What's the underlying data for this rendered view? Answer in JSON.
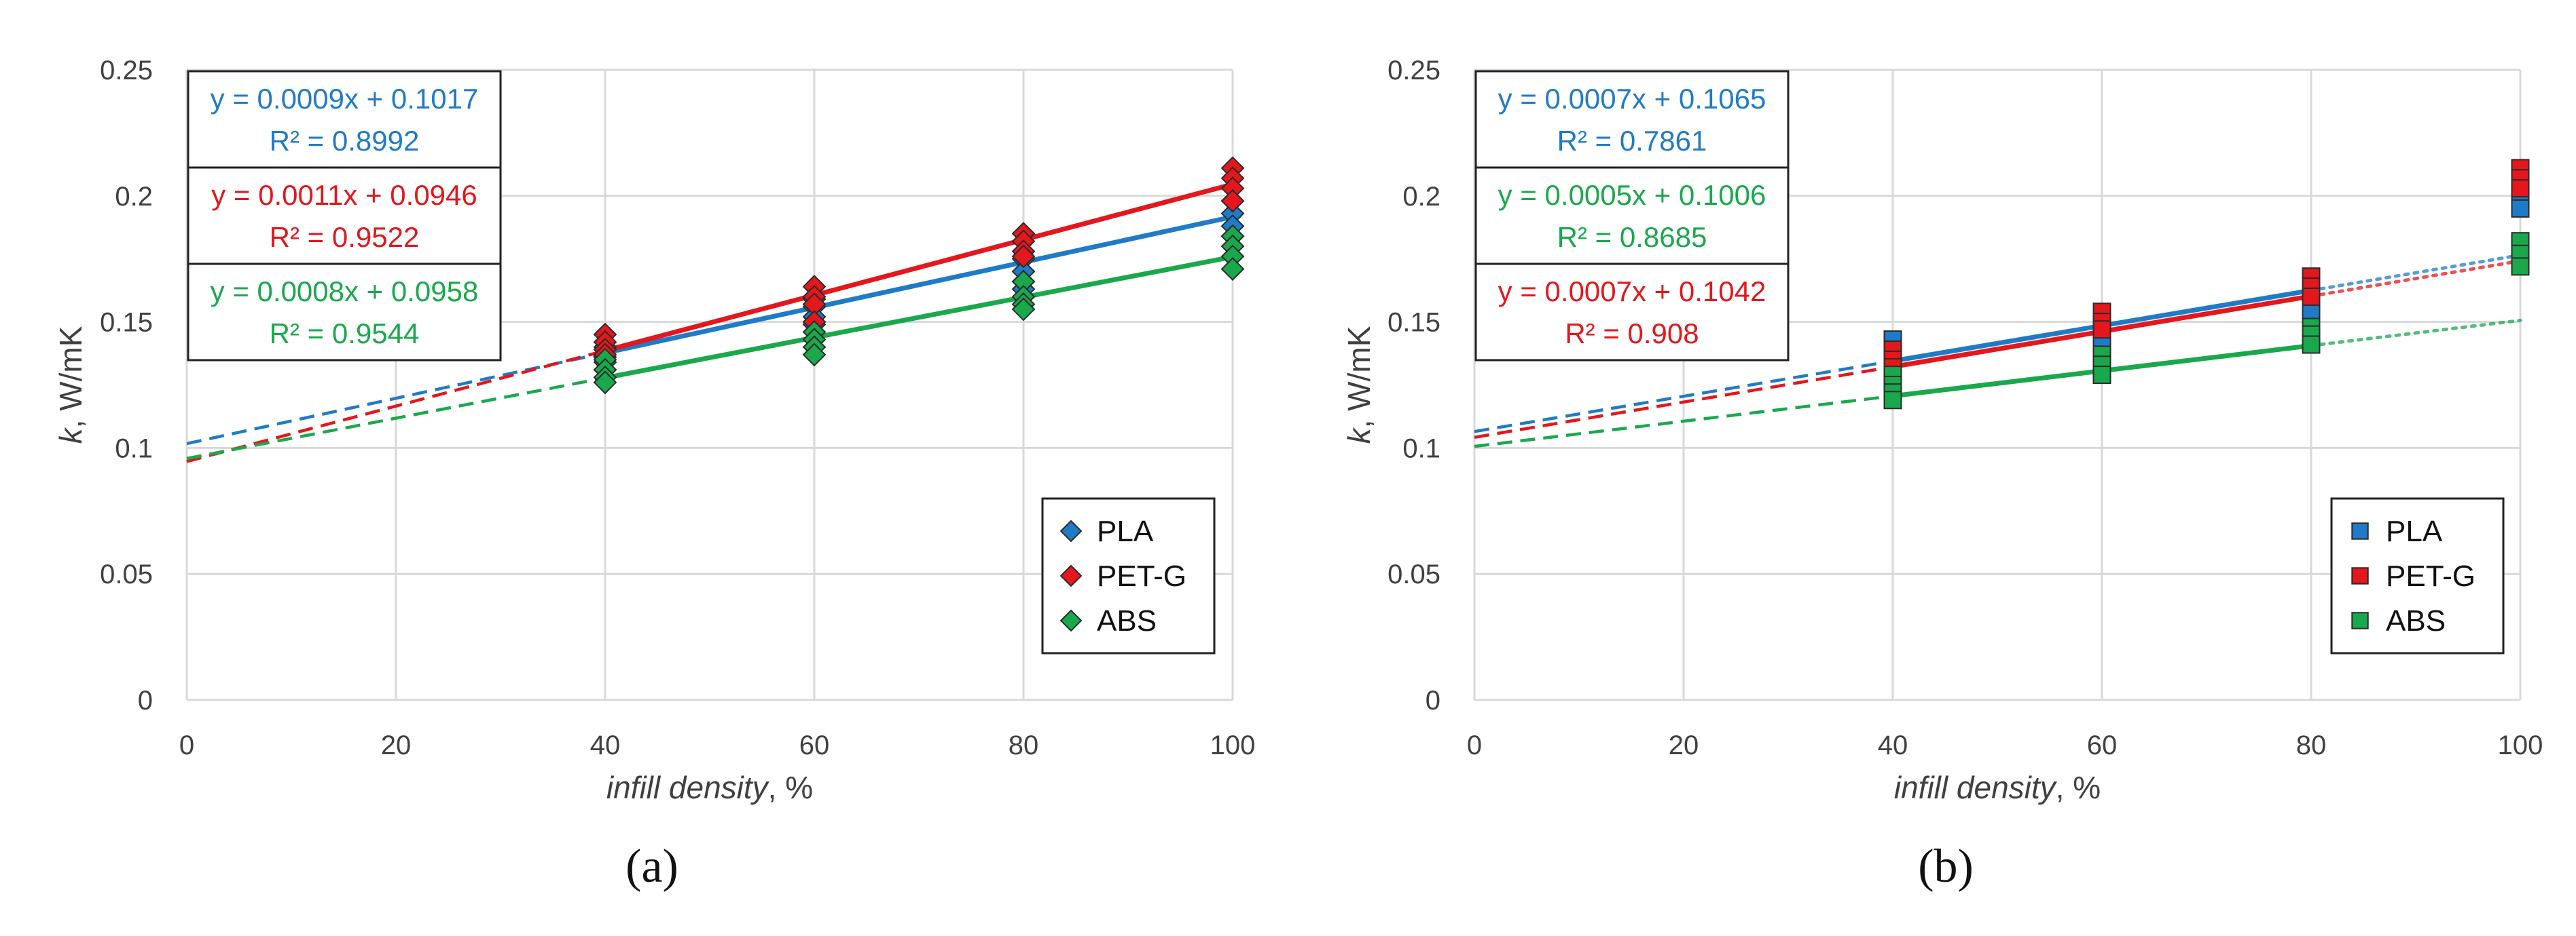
{
  "colors": {
    "PLA": "#1f7bc8",
    "PET-G": "#e3171c",
    "ABS": "#1aa84c",
    "grid": "#d9d9d9",
    "text": "#404040"
  },
  "chart_data": [
    {
      "id": "a",
      "type": "scatter",
      "panel_label": "(a)",
      "marker": "diamond",
      "xlabel_italic": "infill density",
      "xlabel_suffix": ", %",
      "ylabel_italic": "k",
      "ylabel_suffix": ", W/mK",
      "xlim": [
        0,
        100
      ],
      "ylim": [
        0,
        0.25
      ],
      "xticks": [
        0,
        20,
        40,
        60,
        80,
        100
      ],
      "yticks": [
        0,
        0.05,
        0.1,
        0.15,
        0.2,
        0.25
      ],
      "ytick_labels": [
        "0",
        "0.05",
        "0.1",
        "0.15",
        "0.2",
        "0.25"
      ],
      "grid": true,
      "legend_position": "bottom-right",
      "fit_x_range": [
        40,
        100
      ],
      "dashed_extrapolation": [
        0,
        40
      ],
      "series": [
        {
          "name": "PLA",
          "color_key": "PLA",
          "points": [
            [
              40,
              0.14
            ],
            [
              40,
              0.136
            ],
            [
              40,
              0.134
            ],
            [
              40,
              0.131
            ],
            [
              60,
              0.159
            ],
            [
              60,
              0.156
            ],
            [
              60,
              0.152
            ],
            [
              60,
              0.149
            ],
            [
              80,
              0.175
            ],
            [
              80,
              0.17
            ],
            [
              80,
              0.166
            ],
            [
              80,
              0.163
            ],
            [
              100,
              0.198
            ],
            [
              100,
              0.193
            ],
            [
              100,
              0.188
            ],
            [
              100,
              0.184
            ]
          ],
          "fit": {
            "slope": 0.0009,
            "intercept": 0.1017
          },
          "equation": "y = 0.0009x + 0.1017",
          "r2": "R² = 0.8992"
        },
        {
          "name": "PET-G",
          "color_key": "PET-G",
          "points": [
            [
              40,
              0.145
            ],
            [
              40,
              0.142
            ],
            [
              40,
              0.139
            ],
            [
              40,
              0.137
            ],
            [
              60,
              0.164
            ],
            [
              60,
              0.16
            ],
            [
              60,
              0.157
            ],
            [
              60,
              0.15
            ],
            [
              80,
              0.185
            ],
            [
              80,
              0.182
            ],
            [
              80,
              0.178
            ],
            [
              80,
              0.176
            ],
            [
              100,
              0.211
            ],
            [
              100,
              0.207
            ],
            [
              100,
              0.203
            ],
            [
              100,
              0.198
            ]
          ],
          "fit": {
            "slope": 0.0011,
            "intercept": 0.0946
          },
          "equation": "y = 0.0011x + 0.0946",
          "r2": "R² = 0.9522"
        },
        {
          "name": "ABS",
          "color_key": "ABS",
          "points": [
            [
              40,
              0.135
            ],
            [
              40,
              0.131
            ],
            [
              40,
              0.128
            ],
            [
              40,
              0.126
            ],
            [
              60,
              0.146
            ],
            [
              60,
              0.143
            ],
            [
              60,
              0.14
            ],
            [
              60,
              0.137
            ],
            [
              80,
              0.166
            ],
            [
              80,
              0.16
            ],
            [
              80,
              0.157
            ],
            [
              80,
              0.155
            ],
            [
              100,
              0.184
            ],
            [
              100,
              0.18
            ],
            [
              100,
              0.176
            ],
            [
              100,
              0.171
            ]
          ],
          "fit": {
            "slope": 0.0008,
            "intercept": 0.0958
          },
          "equation": "y = 0.0008x + 0.0958",
          "r2": "R² = 0.9544"
        }
      ]
    },
    {
      "id": "b",
      "type": "scatter",
      "panel_label": "(b)",
      "marker": "square",
      "xlabel_italic": "infill density",
      "xlabel_suffix": ", %",
      "ylabel_italic": "k",
      "ylabel_suffix": ", W/mK",
      "xlim": [
        0,
        100
      ],
      "ylim": [
        0,
        0.25
      ],
      "xticks": [
        0,
        20,
        40,
        60,
        80,
        100
      ],
      "yticks": [
        0,
        0.05,
        0.1,
        0.15,
        0.2,
        0.25
      ],
      "ytick_labels": [
        "0",
        "0.05",
        "0.1",
        "0.15",
        "0.2",
        "0.25"
      ],
      "grid": true,
      "legend_position": "bottom-right",
      "fit_x_range": [
        40,
        80
      ],
      "dashed_extrapolation": [
        0,
        40
      ],
      "dotted_extrapolation": [
        80,
        100
      ],
      "series": [
        {
          "name": "PLA",
          "color_key": "PLA",
          "points": [
            [
              40,
              0.143
            ],
            [
              40,
              0.138
            ],
            [
              40,
              0.134
            ],
            [
              40,
              0.13
            ],
            [
              60,
              0.15
            ],
            [
              60,
              0.146
            ],
            [
              60,
              0.143
            ],
            [
              80,
              0.163
            ],
            [
              80,
              0.158
            ],
            [
              80,
              0.154
            ],
            [
              100,
              0.203
            ],
            [
              100,
              0.199
            ],
            [
              100,
              0.195
            ]
          ],
          "fit": {
            "slope": 0.0007,
            "intercept": 0.1065
          },
          "equation": "y = 0.0007x + 0.1065",
          "r2": "R² = 0.7861"
        },
        {
          "name": "PET-G",
          "color_key": "PET-G",
          "points": [
            [
              40,
              0.139
            ],
            [
              40,
              0.135
            ],
            [
              40,
              0.132
            ],
            [
              60,
              0.154
            ],
            [
              60,
              0.15
            ],
            [
              60,
              0.147
            ],
            [
              80,
              0.168
            ],
            [
              80,
              0.164
            ],
            [
              80,
              0.16
            ],
            [
              100,
              0.211
            ],
            [
              100,
              0.207
            ],
            [
              100,
              0.203
            ]
          ],
          "fit": {
            "slope": 0.0007,
            "intercept": 0.1042
          },
          "equation": "y = 0.0007x + 0.1042",
          "r2": "R² = 0.908"
        },
        {
          "name": "ABS",
          "color_key": "ABS",
          "points": [
            [
              40,
              0.129
            ],
            [
              40,
              0.125
            ],
            [
              40,
              0.122
            ],
            [
              40,
              0.119
            ],
            [
              60,
              0.137
            ],
            [
              60,
              0.133
            ],
            [
              60,
              0.129
            ],
            [
              80,
              0.148
            ],
            [
              80,
              0.145
            ],
            [
              80,
              0.141
            ],
            [
              100,
              0.182
            ],
            [
              100,
              0.177
            ],
            [
              100,
              0.172
            ]
          ],
          "fit": {
            "slope": 0.0005,
            "intercept": 0.1006
          },
          "equation": "y = 0.0005x + 0.1006",
          "r2": "R² = 0.8685"
        }
      ]
    }
  ]
}
